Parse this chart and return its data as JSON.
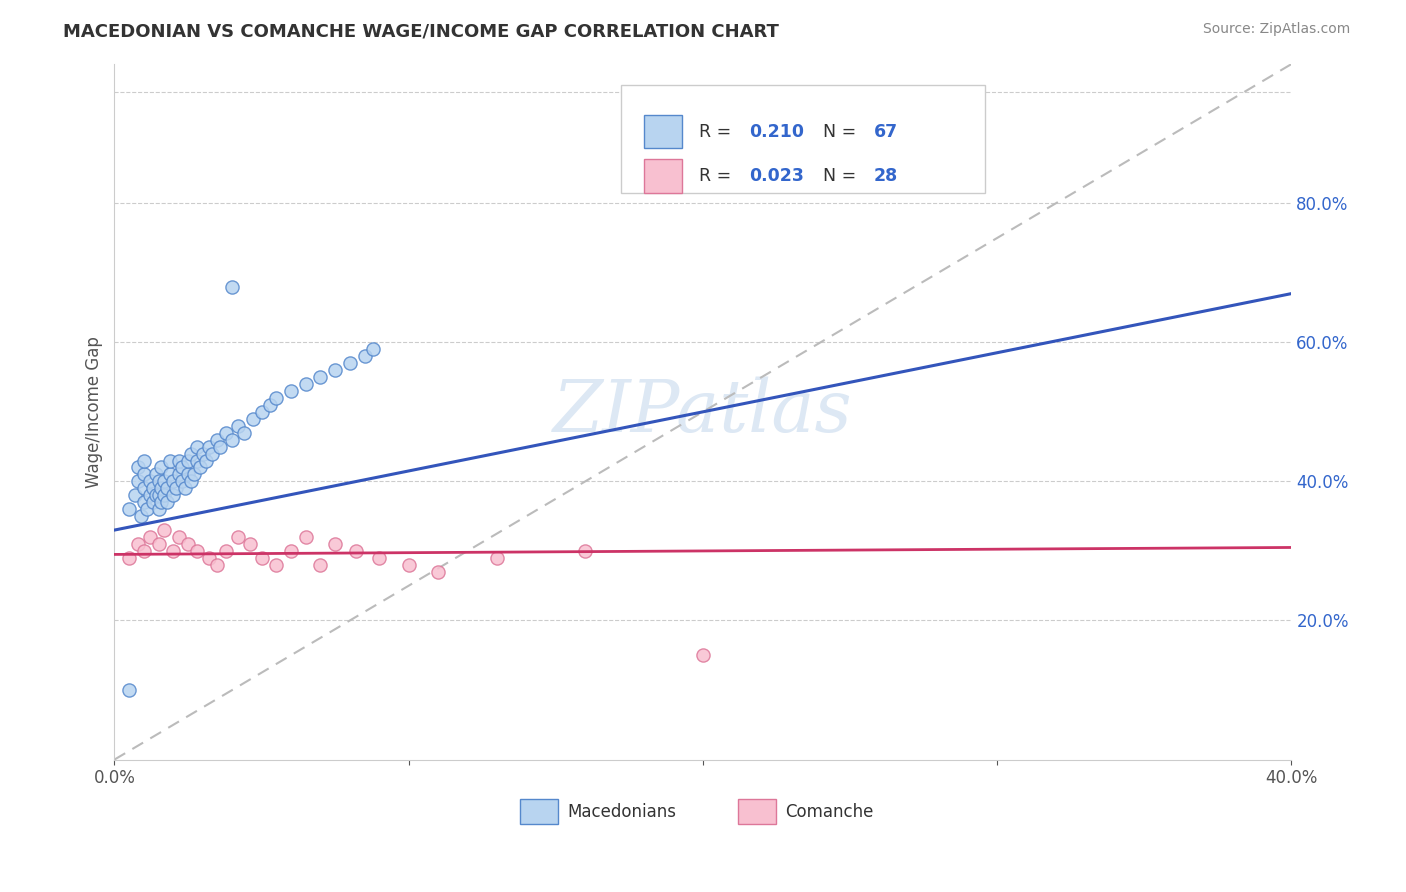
{
  "title": "MACEDONIAN VS COMANCHE WAGE/INCOME GAP CORRELATION CHART",
  "source": "Source: ZipAtlas.com",
  "ylabel": "Wage/Income Gap",
  "xlim": [
    0.0,
    0.4
  ],
  "ylim": [
    0.0,
    1.0
  ],
  "xticks": [
    0.0,
    0.1,
    0.2,
    0.3,
    0.4
  ],
  "xticklabels": [
    "0.0%",
    "",
    "",
    "",
    "40.0%"
  ],
  "right_yticks": [
    0.2,
    0.4,
    0.6,
    0.8
  ],
  "right_yticklabels": [
    "20.0%",
    "40.0%",
    "60.0%",
    "80.0%"
  ],
  "macedonian_color": "#b8d4f0",
  "macedonian_edge": "#5588cc",
  "comanche_color": "#f8c0d0",
  "comanche_edge": "#dd7799",
  "macedonian_R": 0.21,
  "macedonian_N": 67,
  "comanche_R": 0.023,
  "comanche_N": 28,
  "trendline_macedonian_color": "#3355bb",
  "trendline_comanche_color": "#cc3366",
  "diagonal_color": "#bbbbbb",
  "background_color": "#ffffff",
  "legend_color": "#3366cc",
  "macedonian_x": [
    0.005,
    0.007,
    0.008,
    0.008,
    0.009,
    0.01,
    0.01,
    0.01,
    0.01,
    0.011,
    0.012,
    0.012,
    0.013,
    0.013,
    0.014,
    0.014,
    0.015,
    0.015,
    0.015,
    0.016,
    0.016,
    0.016,
    0.017,
    0.017,
    0.018,
    0.018,
    0.019,
    0.019,
    0.02,
    0.02,
    0.021,
    0.022,
    0.022,
    0.023,
    0.023,
    0.024,
    0.025,
    0.025,
    0.026,
    0.026,
    0.027,
    0.028,
    0.028,
    0.029,
    0.03,
    0.031,
    0.032,
    0.033,
    0.035,
    0.036,
    0.038,
    0.04,
    0.042,
    0.044,
    0.047,
    0.05,
    0.053,
    0.055,
    0.06,
    0.065,
    0.07,
    0.075,
    0.08,
    0.085,
    0.088,
    0.04,
    0.005
  ],
  "macedonian_y": [
    0.36,
    0.38,
    0.4,
    0.42,
    0.35,
    0.37,
    0.39,
    0.41,
    0.43,
    0.36,
    0.38,
    0.4,
    0.37,
    0.39,
    0.38,
    0.41,
    0.36,
    0.38,
    0.4,
    0.37,
    0.39,
    0.42,
    0.38,
    0.4,
    0.37,
    0.39,
    0.41,
    0.43,
    0.38,
    0.4,
    0.39,
    0.41,
    0.43,
    0.4,
    0.42,
    0.39,
    0.41,
    0.43,
    0.4,
    0.44,
    0.41,
    0.43,
    0.45,
    0.42,
    0.44,
    0.43,
    0.45,
    0.44,
    0.46,
    0.45,
    0.47,
    0.46,
    0.48,
    0.47,
    0.49,
    0.5,
    0.51,
    0.52,
    0.53,
    0.54,
    0.55,
    0.56,
    0.57,
    0.58,
    0.59,
    0.68,
    0.1
  ],
  "comanche_x": [
    0.005,
    0.008,
    0.01,
    0.012,
    0.015,
    0.017,
    0.02,
    0.022,
    0.025,
    0.028,
    0.032,
    0.035,
    0.038,
    0.042,
    0.046,
    0.05,
    0.055,
    0.06,
    0.065,
    0.07,
    0.075,
    0.082,
    0.09,
    0.1,
    0.11,
    0.13,
    0.16,
    0.2
  ],
  "comanche_y": [
    0.29,
    0.31,
    0.3,
    0.32,
    0.31,
    0.33,
    0.3,
    0.32,
    0.31,
    0.3,
    0.29,
    0.28,
    0.3,
    0.32,
    0.31,
    0.29,
    0.28,
    0.3,
    0.32,
    0.28,
    0.31,
    0.3,
    0.29,
    0.28,
    0.27,
    0.29,
    0.3,
    0.15
  ]
}
